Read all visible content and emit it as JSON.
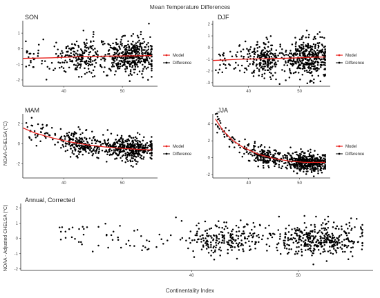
{
  "figure": {
    "title": "Mean Temperature Differences",
    "xlabel": "Continentality Index",
    "ylabel_top": "NOAA-CHELSA (°C)",
    "ylabel_bottom": "NOAA - Adjusted CHELSA (°C)"
  },
  "colors": {
    "model": "#e8201c",
    "difference": "#000000",
    "axis": "#222222",
    "tick_text": "#444444"
  },
  "chart_data": [
    {
      "id": "son",
      "type": "scatter",
      "title": "SON",
      "xlim": [
        33,
        56
      ],
      "ylim": [
        -2.4,
        1.8
      ],
      "x_ticks": [
        40,
        50
      ],
      "y_ticks": [
        -2,
        -1,
        0,
        1
      ],
      "legend": {
        "placement": "right",
        "entries": [
          "Model",
          "Difference"
        ]
      },
      "series": [
        {
          "name": "Model",
          "kind": "line",
          "x": [
            33,
            38,
            43,
            48,
            53,
            55
          ],
          "y": [
            -0.62,
            -0.58,
            -0.5,
            -0.47,
            -0.45,
            -0.44
          ]
        },
        {
          "name": "Difference",
          "kind": "points",
          "x_range": [
            33.5,
            55
          ],
          "n": 650,
          "trend": [
            [
              33,
              -0.62
            ],
            [
              55,
              -0.44
            ]
          ],
          "sd": 0.55,
          "seed": 11
        }
      ]
    },
    {
      "id": "djf",
      "type": "scatter",
      "title": "DJF",
      "xlim": [
        33,
        56
      ],
      "ylim": [
        -3.3,
        2.3
      ],
      "x_ticks": [
        40,
        50
      ],
      "y_ticks": [
        -3,
        -2,
        -1,
        0,
        1,
        2
      ],
      "legend": {
        "placement": "right",
        "entries": [
          "Model",
          "Difference"
        ]
      },
      "series": [
        {
          "name": "Model",
          "kind": "line",
          "x": [
            33,
            38,
            43,
            48,
            53,
            55
          ],
          "y": [
            -1.1,
            -1.0,
            -0.95,
            -0.9,
            -0.82,
            -0.8
          ]
        },
        {
          "name": "Difference",
          "kind": "points",
          "x_range": [
            33.5,
            55
          ],
          "n": 650,
          "trend": [
            [
              33,
              -1.1
            ],
            [
              55,
              -0.8
            ]
          ],
          "sd": 0.75,
          "seed": 23
        }
      ]
    },
    {
      "id": "mam",
      "type": "scatter",
      "title": "MAM",
      "xlim": [
        33,
        56
      ],
      "ylim": [
        -3.4,
        3.0
      ],
      "x_ticks": [
        40,
        50
      ],
      "y_ticks": [
        -2,
        0,
        2
      ],
      "legend": {
        "placement": "right",
        "entries": [
          "Model",
          "Difference"
        ]
      },
      "series": [
        {
          "name": "Model",
          "kind": "line",
          "x": [
            33,
            35,
            38,
            41,
            44,
            47,
            50,
            53,
            55
          ],
          "y": [
            1.6,
            1.1,
            0.6,
            0.2,
            -0.1,
            -0.3,
            -0.45,
            -0.55,
            -0.6
          ]
        },
        {
          "name": "Difference",
          "kind": "points",
          "x_range": [
            33.5,
            55
          ],
          "n": 650,
          "trend": [
            [
              33,
              1.6
            ],
            [
              35,
              1.1
            ],
            [
              38,
              0.6
            ],
            [
              41,
              0.2
            ],
            [
              44,
              -0.1
            ],
            [
              47,
              -0.3
            ],
            [
              50,
              -0.45
            ],
            [
              53,
              -0.55
            ],
            [
              55,
              -0.6
            ]
          ],
          "sd": 0.6,
          "seed": 37
        }
      ]
    },
    {
      "id": "jja",
      "type": "scatter",
      "title": "JJA",
      "xlim": [
        33,
        56
      ],
      "ylim": [
        -2.4,
        5.2
      ],
      "x_ticks": [
        40,
        50
      ],
      "y_ticks": [
        -2,
        0,
        2,
        4
      ],
      "legend": {
        "placement": "right",
        "entries": [
          "Model",
          "Difference"
        ]
      },
      "series": [
        {
          "name": "Model",
          "kind": "line",
          "x": [
            33.5,
            35,
            37,
            39,
            42,
            45,
            48,
            51,
            55
          ],
          "y": [
            4.6,
            3.2,
            2.0,
            1.2,
            0.4,
            -0.1,
            -0.4,
            -0.55,
            -0.55
          ]
        },
        {
          "name": "Difference",
          "kind": "points",
          "x_range": [
            33.5,
            55
          ],
          "n": 650,
          "trend": [
            [
              33.5,
              4.6
            ],
            [
              35,
              3.2
            ],
            [
              37,
              2.0
            ],
            [
              39,
              1.2
            ],
            [
              42,
              0.4
            ],
            [
              45,
              -0.1
            ],
            [
              48,
              -0.4
            ],
            [
              51,
              -0.55
            ],
            [
              55,
              -0.55
            ]
          ],
          "sd": 0.55,
          "seed": 53
        }
      ]
    },
    {
      "id": "annual",
      "type": "scatter",
      "title": "Annual, Corrected",
      "xlim": [
        24,
        57
      ],
      "ylim": [
        -2.1,
        2.3
      ],
      "x_ticks": [
        40,
        50
      ],
      "y_ticks": [
        -2,
        -1,
        0,
        1,
        2
      ],
      "series": [
        {
          "name": "Difference",
          "kind": "points",
          "x_range": [
            27.5,
            56
          ],
          "n": 650,
          "trend": [
            [
              27,
              0.0
            ],
            [
              56,
              0.0
            ]
          ],
          "sd": 0.55,
          "seed": 71
        }
      ]
    }
  ]
}
